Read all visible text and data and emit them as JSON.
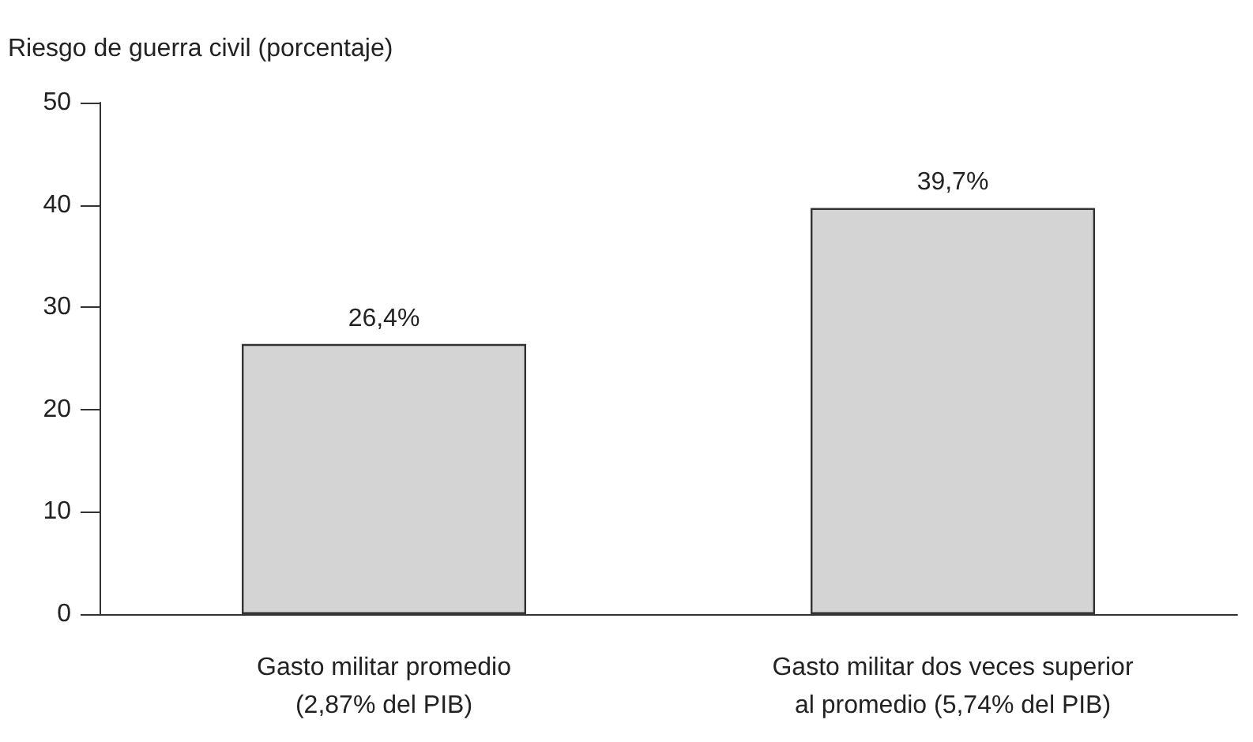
{
  "chart_data": {
    "type": "bar",
    "ylabel": "Riesgo de guerra civil (porcentaje)",
    "categories": [
      "Gasto militar promedio\n(2,87% del PIB)",
      "Gasto militar dos veces superior\nal promedio (5,74% del PIB)"
    ],
    "values": [
      26.4,
      39.7
    ],
    "value_labels": [
      "26,4%",
      "39,7%"
    ],
    "color": "#d4d4d4",
    "ylim": [
      0,
      50
    ],
    "yticks": [
      0,
      10,
      20,
      30,
      40,
      50
    ],
    "grid": false
  }
}
